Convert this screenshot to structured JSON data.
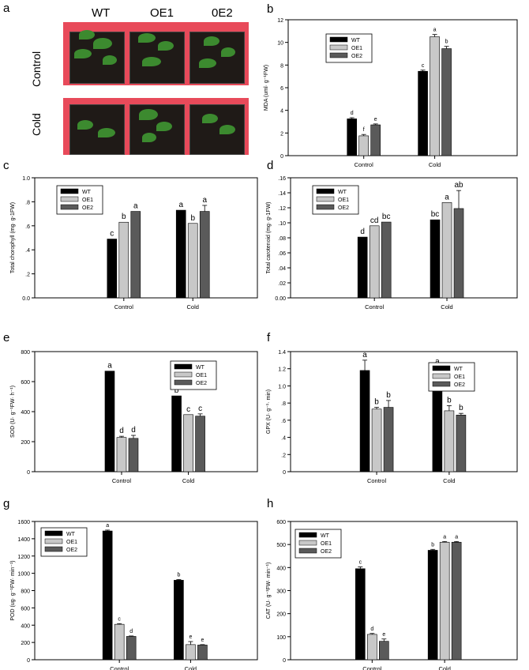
{
  "panel_a": {
    "letter": "a",
    "columns": [
      "WT",
      "OE1",
      "0E2"
    ],
    "rows": [
      "Control",
      "Cold"
    ]
  },
  "chart_data": [
    {
      "id": "b",
      "letter": "b",
      "type": "bar",
      "categories": [
        "Control",
        "Cold"
      ],
      "series": [
        {
          "name": "WT",
          "values": [
            3.25,
            7.45
          ],
          "errors": [
            0.1,
            0.1
          ],
          "letters": [
            "d",
            "c"
          ]
        },
        {
          "name": "OE1",
          "values": [
            1.75,
            10.5
          ],
          "errors": [
            0.12,
            0.2
          ],
          "letters": [
            "f",
            "a"
          ]
        },
        {
          "name": "OE2",
          "values": [
            2.72,
            9.45
          ],
          "errors": [
            0.08,
            0.2
          ],
          "letters": [
            "e",
            "b"
          ]
        }
      ],
      "ylabel": "MDA (uml·  g⁻¹FW)",
      "ylim": [
        0,
        12
      ],
      "ticks": [
        0,
        2,
        4,
        6,
        8,
        10,
        12
      ],
      "tick_labels": [
        "0",
        "2",
        "4",
        "6",
        "8",
        "10",
        "12"
      ],
      "legend": "top-left"
    },
    {
      "id": "c",
      "letter": "c",
      "type": "bar",
      "categories": [
        "Control",
        "Cold"
      ],
      "series": [
        {
          "name": "WT",
          "values": [
            0.49,
            0.73
          ],
          "errors": [
            0,
            0
          ],
          "letters": [
            "c",
            "a"
          ]
        },
        {
          "name": "OE1",
          "values": [
            0.63,
            0.62
          ],
          "errors": [
            0,
            0
          ],
          "letters": [
            "b",
            "b"
          ]
        },
        {
          "name": "OE2",
          "values": [
            0.72,
            0.72
          ],
          "errors": [
            0,
            0.05
          ],
          "letters": [
            "a",
            "a"
          ]
        }
      ],
      "ylabel": "Total chorophyll (mg· g-1FW)",
      "ylim": [
        0,
        1.0
      ],
      "ticks": [
        0,
        0.2,
        0.4,
        0.6,
        0.8,
        1.0
      ],
      "tick_labels": [
        "0.0",
        ".2",
        ".4",
        ".6",
        ".8",
        "1.0"
      ],
      "legend": "top-left"
    },
    {
      "id": "d",
      "letter": "d",
      "type": "bar",
      "categories": [
        "Control",
        "Cold"
      ],
      "series": [
        {
          "name": "WT",
          "values": [
            0.081,
            0.104
          ],
          "errors": [
            0,
            0
          ],
          "letters": [
            "d",
            "bc"
          ]
        },
        {
          "name": "OE1",
          "values": [
            0.096,
            0.127
          ],
          "errors": [
            0,
            0
          ],
          "letters": [
            "cd",
            "a"
          ]
        },
        {
          "name": "OE2",
          "values": [
            0.101,
            0.119
          ],
          "errors": [
            0,
            0.024
          ],
          "letters": [
            "bc",
            "ab"
          ]
        }
      ],
      "ylabel": "Total carotenoid (mg· g-1FW)",
      "ylim": [
        0,
        0.16
      ],
      "ticks": [
        0,
        0.02,
        0.04,
        0.06,
        0.08,
        0.1,
        0.12,
        0.14,
        0.16
      ],
      "tick_labels": [
        "0.00",
        ".02",
        ".04",
        ".06",
        ".08",
        ".10",
        ".12",
        ".14",
        ".16"
      ],
      "legend": "top-left"
    },
    {
      "id": "e",
      "letter": "e",
      "type": "bar",
      "categories": [
        "Control",
        "Cold"
      ],
      "series": [
        {
          "name": "WT",
          "values": [
            670,
            505
          ],
          "errors": [
            0,
            0
          ],
          "letters": [
            "a",
            "b"
          ]
        },
        {
          "name": "OE1",
          "values": [
            228,
            380
          ],
          "errors": [
            8,
            0
          ],
          "letters": [
            "d",
            "c"
          ]
        },
        {
          "name": "OE2",
          "values": [
            222,
            370
          ],
          "errors": [
            20,
            15
          ],
          "letters": [
            "d",
            "c"
          ]
        }
      ],
      "ylabel": "SOD (U· g⁻¹FW· h⁻¹)",
      "ylim": [
        0,
        800
      ],
      "ticks": [
        0,
        200,
        400,
        600,
        800
      ],
      "tick_labels": [
        "0",
        "200",
        "400",
        "600",
        "800"
      ],
      "legend": "top-right"
    },
    {
      "id": "f",
      "letter": "f",
      "type": "bar",
      "categories": [
        "Control",
        "Cold"
      ],
      "series": [
        {
          "name": "WT",
          "values": [
            1.18,
            1.17
          ],
          "errors": [
            0.12,
            0.05
          ],
          "letters": [
            "a",
            "a"
          ]
        },
        {
          "name": "OE1",
          "values": [
            0.73,
            0.71
          ],
          "errors": [
            0.02,
            0.06
          ],
          "letters": [
            "b",
            "b"
          ]
        },
        {
          "name": "OE2",
          "values": [
            0.75,
            0.66
          ],
          "errors": [
            0.08,
            0.02
          ],
          "letters": [
            "b",
            "b"
          ]
        }
      ],
      "ylabel": "GPX (U· g⁻¹· min)",
      "ylim": [
        0,
        1.4
      ],
      "ticks": [
        0,
        0.2,
        0.4,
        0.6,
        0.8,
        1.0,
        1.2,
        1.4
      ],
      "tick_labels": [
        "0",
        ".2",
        ".4",
        ".6",
        ".8",
        "1.0",
        "1.2",
        "1.4"
      ],
      "legend": "top-right"
    },
    {
      "id": "g",
      "letter": "g",
      "type": "bar",
      "categories": [
        "Control",
        "Cold"
      ],
      "series": [
        {
          "name": "WT",
          "values": [
            1490,
            920
          ],
          "errors": [
            10,
            8
          ],
          "letters": [
            "a",
            "b"
          ]
        },
        {
          "name": "OE1",
          "values": [
            410,
            175
          ],
          "errors": [
            8,
            35
          ],
          "letters": [
            "c",
            "e"
          ]
        },
        {
          "name": "OE2",
          "values": [
            270,
            170
          ],
          "errors": [
            5,
            5
          ],
          "letters": [
            "d",
            "e"
          ]
        }
      ],
      "ylabel": "POD (ug· g⁻¹FW· min⁻¹)",
      "ylim": [
        0,
        1600
      ],
      "ticks": [
        0,
        200,
        400,
        600,
        800,
        1000,
        1200,
        1400,
        1600
      ],
      "tick_labels": [
        "0",
        "200",
        "400",
        "600",
        "800",
        "1000",
        "1200",
        "1400",
        "1600"
      ],
      "legend": "top-left"
    },
    {
      "id": "h",
      "letter": "h",
      "type": "bar",
      "categories": [
        "Control",
        "Cold"
      ],
      "series": [
        {
          "name": "WT",
          "values": [
            395,
            475
          ],
          "errors": [
            8,
            4
          ],
          "letters": [
            "c",
            "b"
          ]
        },
        {
          "name": "OE1",
          "values": [
            110,
            510
          ],
          "errors": [
            4,
            3
          ],
          "letters": [
            "d",
            "a"
          ]
        },
        {
          "name": "OE2",
          "values": [
            80,
            510
          ],
          "errors": [
            10,
            3
          ],
          "letters": [
            "e",
            "a"
          ]
        }
      ],
      "ylabel": "CAT (U· g⁻¹FW· min⁻¹)",
      "ylim": [
        0,
        600
      ],
      "ticks": [
        0,
        100,
        200,
        300,
        400,
        500,
        600
      ],
      "tick_labels": [
        "0",
        "100",
        "200",
        "300",
        "400",
        "500",
        "600"
      ],
      "legend": "top-left"
    }
  ]
}
